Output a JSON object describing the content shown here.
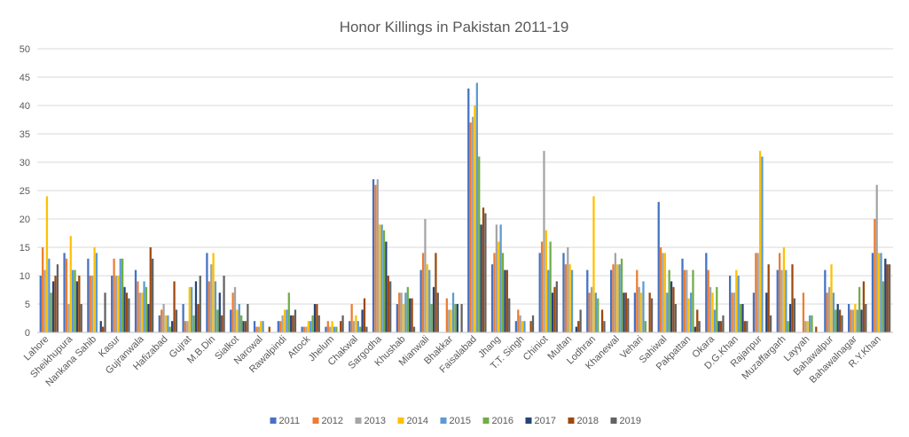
{
  "chart_data": {
    "type": "bar",
    "title": "Honor Killings in Pakistan 2011-19",
    "xlabel": "",
    "ylabel": "",
    "ylim": [
      0,
      50
    ],
    "y_ticks": [
      0,
      5,
      10,
      15,
      20,
      25,
      30,
      35,
      40,
      45,
      50
    ],
    "grid": true,
    "legend_position": "bottom",
    "categories": [
      "Lahore",
      "Sheikhupura",
      "Nankana Sahib",
      "Kasur",
      "Gujranwala",
      "Hafizabad",
      "Gujrat",
      "M.B.Din",
      "Sialkot",
      "Narowal",
      "Rawalpindi",
      "Attock",
      "Jhelum",
      "Chakwal",
      "Sargodha",
      "Khushab",
      "Mianwali",
      "Bhakkar",
      "Faisalabad",
      "Jhang",
      "T.T. Singh",
      "Chiniot",
      "Multan",
      "Lodhran",
      "Khanewal",
      "Vehari",
      "Sahiwal",
      "Pakpattan",
      "Okara",
      "D.G.Khan",
      "Rajanpur",
      "Muzaffargarh",
      "Layyah",
      "Bahawalpur",
      "Bahawalnagar",
      "R.Y.Khan"
    ],
    "series": [
      {
        "name": "2011",
        "color": "#4472C4",
        "values": [
          10,
          14,
          13,
          10,
          11,
          3,
          5,
          14,
          4,
          2,
          2,
          1,
          1,
          2,
          27,
          5,
          11,
          0,
          43,
          12,
          2,
          14,
          14,
          11,
          11,
          7,
          23,
          13,
          14,
          10,
          7,
          11,
          0,
          11,
          5,
          14
        ]
      },
      {
        "name": "2012",
        "color": "#ED7D31",
        "values": [
          15,
          13,
          10,
          13,
          9,
          4,
          2,
          9,
          7,
          1,
          2,
          1,
          2,
          5,
          26,
          7,
          14,
          6,
          37,
          14,
          4,
          16,
          12,
          7,
          12,
          11,
          15,
          11,
          11,
          7,
          14,
          14,
          7,
          7,
          4,
          20
        ]
      },
      {
        "name": "2013",
        "color": "#A5A5A5",
        "values": [
          11,
          5,
          10,
          10,
          7,
          5,
          2,
          12,
          8,
          1,
          3,
          1,
          1,
          2,
          27,
          7,
          20,
          4,
          38,
          19,
          3,
          32,
          15,
          8,
          14,
          8,
          14,
          11,
          8,
          7,
          14,
          11,
          2,
          8,
          4,
          26
        ]
      },
      {
        "name": "2014",
        "color": "#FFC000",
        "values": [
          24,
          17,
          15,
          10,
          7,
          3,
          8,
          14,
          4,
          2,
          4,
          2,
          2,
          3,
          19,
          5,
          12,
          4,
          40,
          16,
          2,
          18,
          12,
          24,
          12,
          7,
          14,
          6,
          7,
          11,
          32,
          15,
          2,
          12,
          5,
          14
        ]
      },
      {
        "name": "2015",
        "color": "#5B9BD5",
        "values": [
          13,
          11,
          14,
          13,
          9,
          3,
          8,
          9,
          5,
          2,
          4,
          2,
          1,
          2,
          19,
          7,
          11,
          7,
          44,
          19,
          2,
          11,
          11,
          7,
          12,
          9,
          7,
          7,
          4,
          10,
          31,
          11,
          3,
          7,
          4,
          14
        ]
      },
      {
        "name": "2016",
        "color": "#70AD47",
        "values": [
          7,
          11,
          0,
          13,
          8,
          1,
          3,
          4,
          3,
          0,
          7,
          3,
          1,
          1,
          18,
          8,
          5,
          5,
          31,
          14,
          0,
          16,
          0,
          6,
          13,
          2,
          11,
          11,
          8,
          5,
          0,
          2,
          3,
          4,
          8,
          9
        ]
      },
      {
        "name": "2017",
        "color": "#264478",
        "values": [
          9,
          9,
          2,
          8,
          5,
          2,
          9,
          7,
          2,
          0,
          3,
          5,
          0,
          4,
          16,
          6,
          8,
          5,
          19,
          11,
          0,
          7,
          1,
          0,
          7,
          0,
          9,
          1,
          2,
          5,
          7,
          5,
          0,
          5,
          4,
          13
        ]
      },
      {
        "name": "2018",
        "color": "#9E480E",
        "values": [
          10,
          10,
          1,
          7,
          15,
          9,
          5,
          3,
          2,
          1,
          3,
          5,
          2,
          6,
          10,
          6,
          14,
          0,
          22,
          11,
          2,
          8,
          2,
          4,
          7,
          7,
          8,
          4,
          2,
          2,
          12,
          12,
          1,
          4,
          9,
          12
        ]
      },
      {
        "name": "2019",
        "color": "#636363",
        "values": [
          12,
          5,
          7,
          6,
          13,
          4,
          10,
          10,
          5,
          0,
          4,
          3,
          3,
          1,
          9,
          1,
          7,
          5,
          21,
          6,
          3,
          9,
          4,
          2,
          6,
          6,
          5,
          2,
          3,
          2,
          3,
          6,
          0,
          3,
          5,
          12
        ]
      }
    ]
  }
}
